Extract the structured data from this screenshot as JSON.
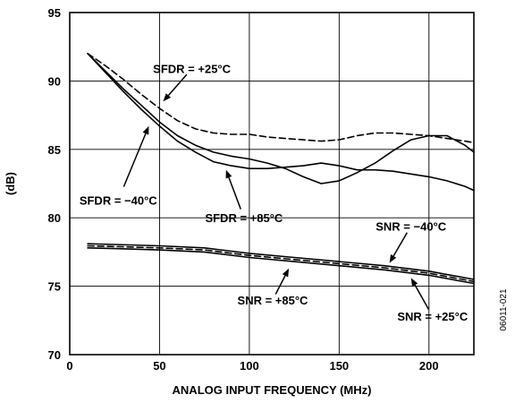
{
  "chart_data": {
    "type": "line",
    "title": "",
    "xlabel": "ANALOG INPUT FREQUENCY (MHz)",
    "ylabel": "(dB)",
    "xlim": [
      0,
      225
    ],
    "ylim": [
      70,
      95
    ],
    "xticks": [
      0,
      50,
      100,
      150,
      200
    ],
    "yticks": [
      70,
      75,
      80,
      85,
      90,
      95
    ],
    "xtick_labels": [
      "0",
      "50",
      "100",
      "150",
      "200"
    ],
    "ytick_labels": [
      "70",
      "75",
      "80",
      "85",
      "90",
      "95"
    ],
    "grid": true,
    "figure_id": "06011-021",
    "series": [
      {
        "name": "SFDR = +25°C",
        "style": "dashed",
        "color": "#000000",
        "x": [
          10,
          20,
          30,
          40,
          50,
          60,
          70,
          80,
          90,
          100,
          110,
          120,
          130,
          140,
          150,
          160,
          170,
          180,
          190,
          200,
          210,
          220,
          225
        ],
        "y": [
          92.0,
          91.1,
          90.1,
          89.0,
          88.0,
          87.1,
          86.5,
          86.2,
          86.1,
          86.1,
          85.9,
          85.8,
          85.7,
          85.6,
          85.7,
          86.0,
          86.2,
          86.2,
          86.1,
          86.0,
          85.8,
          85.6,
          85.5
        ]
      },
      {
        "name": "SFDR = −40°C",
        "style": "solid",
        "color": "#000000",
        "x": [
          10,
          20,
          30,
          40,
          50,
          60,
          70,
          80,
          90,
          100,
          110,
          120,
          130,
          140,
          150,
          160,
          170,
          180,
          190,
          200,
          210,
          220,
          225
        ],
        "y": [
          92.0,
          90.7,
          89.4,
          88.2,
          87.0,
          86.0,
          85.3,
          84.8,
          84.5,
          84.3,
          84.0,
          83.6,
          83.0,
          82.5,
          82.7,
          83.3,
          84.0,
          84.9,
          85.7,
          86.0,
          86.0,
          85.3,
          84.8
        ]
      },
      {
        "name": "SFDR = +85°C",
        "style": "solid",
        "color": "#000000",
        "x": [
          10,
          20,
          30,
          40,
          50,
          60,
          70,
          80,
          90,
          100,
          110,
          120,
          130,
          140,
          150,
          160,
          170,
          180,
          190,
          200,
          210,
          220,
          225
        ],
        "y": [
          92.0,
          90.6,
          89.2,
          87.9,
          86.7,
          85.6,
          84.8,
          84.1,
          83.8,
          83.6,
          83.6,
          83.7,
          83.8,
          84.0,
          83.8,
          83.5,
          83.5,
          83.4,
          83.2,
          83.0,
          82.7,
          82.3,
          82.0
        ]
      },
      {
        "name": "SNR = −40°C",
        "style": "solid",
        "color": "#000000",
        "x": [
          10,
          25,
          50,
          75,
          100,
          125,
          150,
          175,
          200,
          225
        ],
        "y": [
          78.1,
          78.05,
          77.95,
          77.8,
          77.4,
          77.1,
          76.8,
          76.5,
          76.1,
          75.5
        ]
      },
      {
        "name": "SNR = +25°C",
        "style": "dashed",
        "color": "#000000",
        "x": [
          10,
          25,
          50,
          75,
          100,
          125,
          150,
          175,
          200,
          225
        ],
        "y": [
          77.95,
          77.9,
          77.8,
          77.65,
          77.25,
          76.95,
          76.65,
          76.35,
          75.95,
          75.35
        ]
      },
      {
        "name": "SNR = +85°C",
        "style": "solid",
        "color": "#000000",
        "x": [
          10,
          25,
          50,
          75,
          100,
          125,
          150,
          175,
          200,
          225
        ],
        "y": [
          77.8,
          77.75,
          77.65,
          77.5,
          77.1,
          76.8,
          76.5,
          76.2,
          75.8,
          75.2
        ]
      }
    ],
    "annotations": [
      {
        "text": "SFDR = +25°C",
        "text_x": 68,
        "text_y": 90.9,
        "arrow_to": [
          52,
          88.5
        ]
      },
      {
        "text": "SFDR = −40°C",
        "text_x": 27,
        "text_y": 81.3,
        "arrow_to": [
          44,
          86.7
        ]
      },
      {
        "text": "SFDR = +85°C",
        "text_x": 97,
        "text_y": 80.0,
        "arrow_to": [
          87,
          83.5
        ]
      },
      {
        "text": "SNR = −40°C",
        "text_x": 190,
        "text_y": 79.4,
        "arrow_to": [
          178,
          76.7
        ]
      },
      {
        "text": "SNR = +25°C",
        "text_x": 202,
        "text_y": 72.8,
        "arrow_to": [
          190,
          75.6
        ]
      },
      {
        "text": "SNR = +85°C",
        "text_x": 113,
        "text_y": 74.0,
        "arrow_to": [
          122,
          76.3
        ]
      }
    ]
  }
}
